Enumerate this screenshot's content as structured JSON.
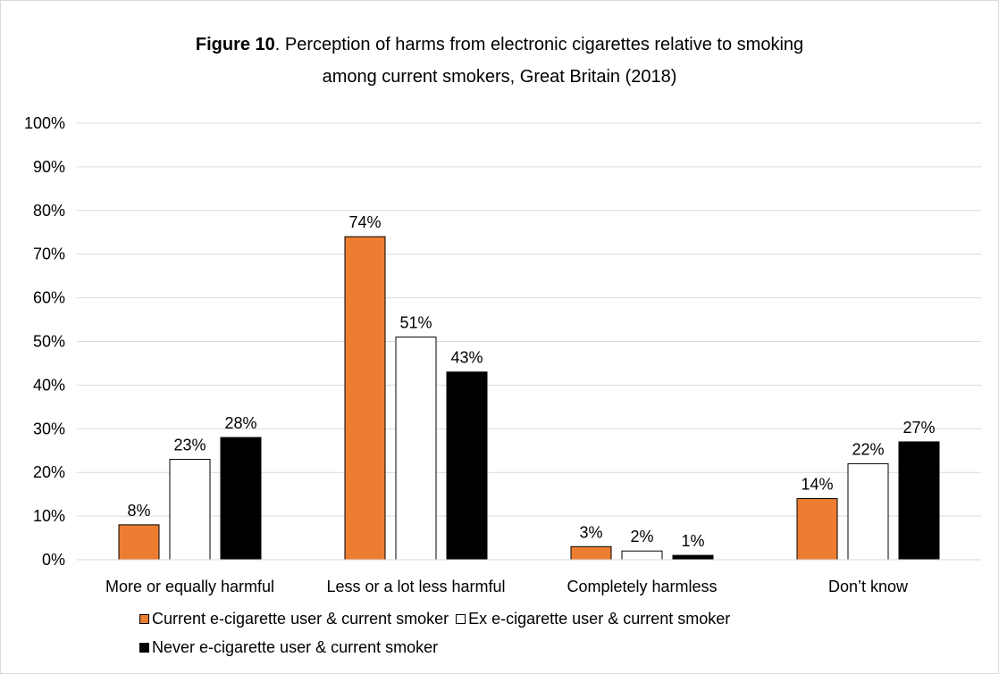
{
  "title_bold": "Figure 10",
  "title_rest_line1": ". Perception of harms from electronic cigarettes relative to smoking",
  "title_line2": "among current  smokers, Great Britain (2018)",
  "colors": {
    "current": "#ed7d31",
    "ex": "#ffffff",
    "never": "#000000",
    "grid": "#d9d9d9",
    "bar_border": "#000000"
  },
  "chart_data": {
    "type": "bar",
    "categories": [
      "More or equally harmful",
      "Less or a lot less harmful",
      "Completely harmless",
      "Don’t know"
    ],
    "series": [
      {
        "name": "Current e-cigarette user & current smoker",
        "values": [
          8,
          74,
          3,
          14
        ],
        "labels": [
          "8%",
          "74%",
          "3%",
          "14%"
        ]
      },
      {
        "name": "Ex e-cigarette user & current smoker",
        "values": [
          23,
          51,
          2,
          22
        ],
        "labels": [
          "23%",
          "51%",
          "2%",
          "22%"
        ]
      },
      {
        "name": "Never e-cigarette user & current smoker",
        "values": [
          28,
          43,
          1,
          27
        ],
        "labels": [
          "28%",
          "43%",
          "1%",
          "27%"
        ]
      }
    ],
    "ylim": [
      0,
      100
    ],
    "yticks": [
      "0%",
      "10%",
      "20%",
      "30%",
      "40%",
      "50%",
      "60%",
      "70%",
      "80%",
      "90%",
      "100%"
    ],
    "grid": true,
    "legend_position": "bottom-left"
  }
}
